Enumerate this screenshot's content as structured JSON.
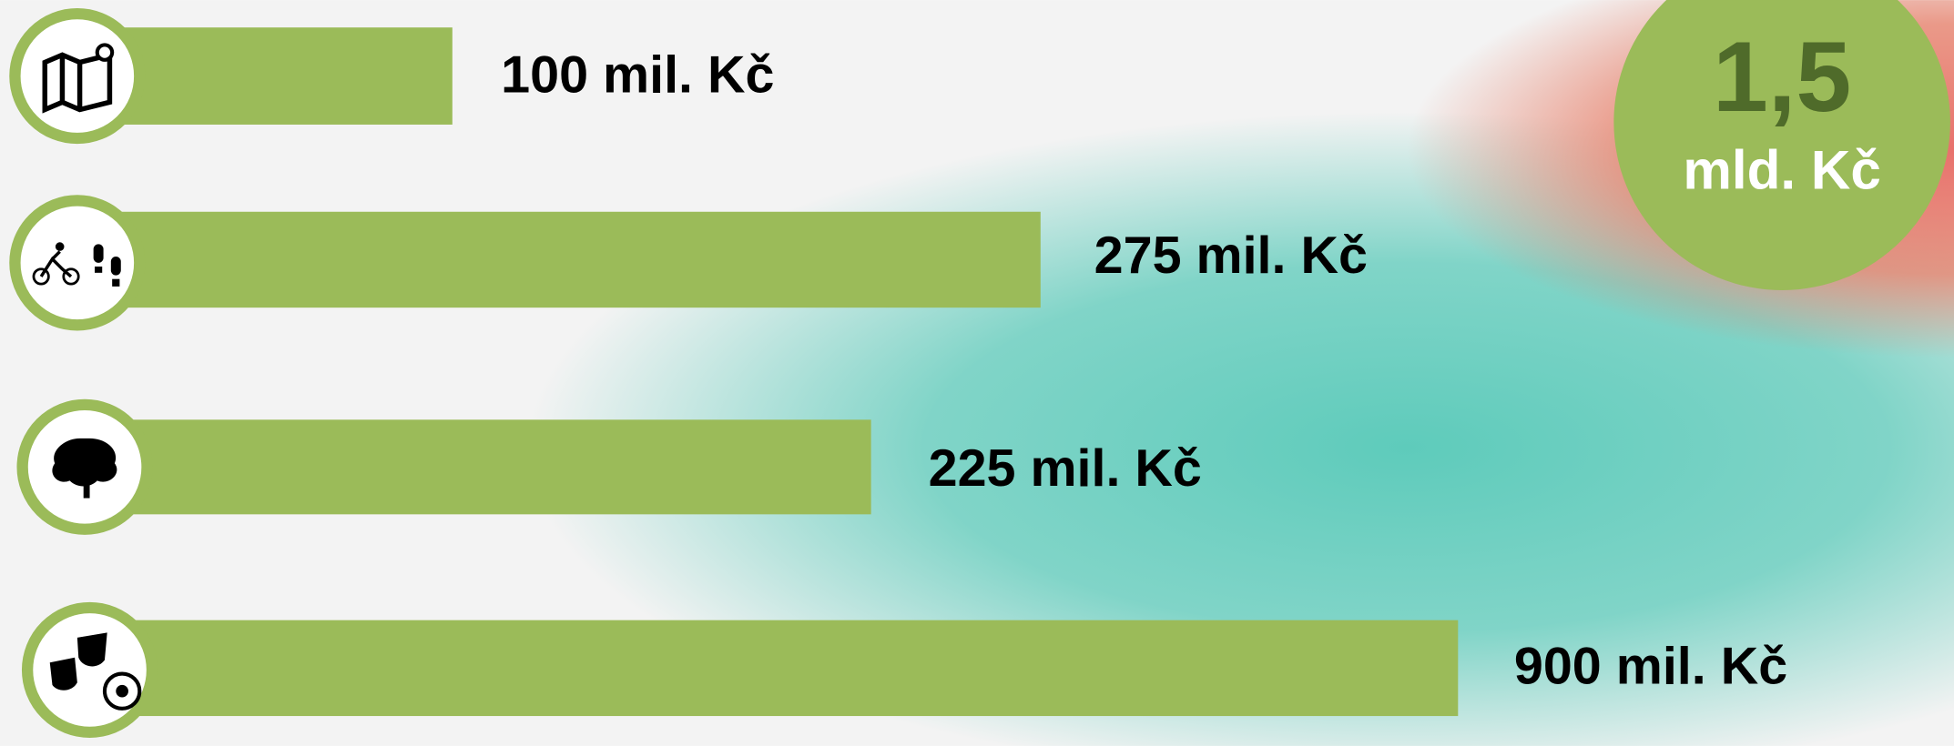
{
  "items": [
    {
      "label": "100 mil. Kč"
    },
    {
      "label": "275 mil. Kč"
    },
    {
      "label": "225 mil. Kč"
    },
    {
      "label": "900 mil. Kč"
    }
  ],
  "total": {
    "number": "1,5",
    "unit": "mld. Kč"
  }
}
